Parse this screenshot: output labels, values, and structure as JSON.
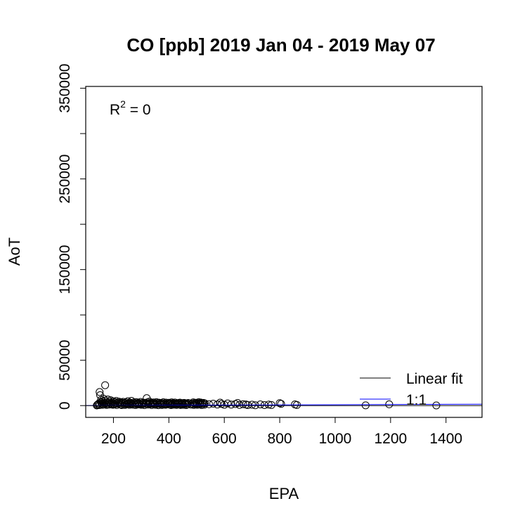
{
  "chart_data": {
    "type": "scatter",
    "title": "CO [ppb] 2019 Jan 04 - 2019 May 07",
    "xlabel": "EPA",
    "ylabel": "AoT",
    "xlim": [
      100,
      1530
    ],
    "ylim": [
      -13000,
      352000
    ],
    "x_ticks": [
      200,
      400,
      600,
      800,
      1000,
      1200,
      1400
    ],
    "x_tick_labels": [
      "200",
      "400",
      "600",
      "800",
      "1000",
      "1200",
      "1400"
    ],
    "y_ticks": [
      0,
      50000,
      100000,
      150000,
      200000,
      250000,
      300000,
      350000
    ],
    "y_tick_labels": [
      "0",
      "50000",
      "",
      "150000",
      "",
      "250000",
      "",
      "350000"
    ],
    "annotation": {
      "prefix": "R",
      "superscript": "2",
      "suffix": " = 0"
    },
    "legend": {
      "position": "bottom-right",
      "entries": [
        {
          "label": "Linear fit",
          "color": "#000000"
        },
        {
          "label": "1:1",
          "color": "#0000ff"
        }
      ]
    },
    "reference_lines": [
      {
        "name": "1:1",
        "intercept": 0,
        "slope": 1,
        "color": "#0000ff"
      },
      {
        "name": "Linear fit",
        "intercept": 0,
        "slope": 0,
        "color": "#000000"
      }
    ],
    "points": [
      [
        140,
        200
      ],
      [
        142,
        900
      ],
      [
        145,
        1500
      ],
      [
        148,
        2500
      ],
      [
        150,
        600
      ],
      [
        150,
        15000
      ],
      [
        152,
        11500
      ],
      [
        155,
        3800
      ],
      [
        155,
        6200
      ],
      [
        158,
        2100
      ],
      [
        160,
        900
      ],
      [
        160,
        4500
      ],
      [
        162,
        3000
      ],
      [
        165,
        7500
      ],
      [
        165,
        1200
      ],
      [
        168,
        2800
      ],
      [
        170,
        22500
      ],
      [
        170,
        5500
      ],
      [
        172,
        2600
      ],
      [
        175,
        3900
      ],
      [
        175,
        800
      ],
      [
        178,
        1600
      ],
      [
        180,
        6800
      ],
      [
        182,
        3100
      ],
      [
        185,
        1100
      ],
      [
        185,
        4200
      ],
      [
        188,
        2300
      ],
      [
        190,
        5900
      ],
      [
        192,
        1700
      ],
      [
        195,
        3300
      ],
      [
        198,
        900
      ],
      [
        200,
        4600
      ],
      [
        200,
        2000
      ],
      [
        203,
        1300
      ],
      [
        205,
        3700
      ],
      [
        208,
        2500
      ],
      [
        210,
        5100
      ],
      [
        212,
        700
      ],
      [
        215,
        3000
      ],
      [
        218,
        1900
      ],
      [
        220,
        4300
      ],
      [
        222,
        2700
      ],
      [
        225,
        1200
      ],
      [
        228,
        3500
      ],
      [
        230,
        600
      ],
      [
        232,
        2400
      ],
      [
        235,
        4100
      ],
      [
        238,
        1600
      ],
      [
        240,
        2900
      ],
      [
        242,
        800
      ],
      [
        245,
        3600
      ],
      [
        248,
        2100
      ],
      [
        250,
        1300
      ],
      [
        252,
        4800
      ],
      [
        255,
        2600
      ],
      [
        258,
        900
      ],
      [
        260,
        3200
      ],
      [
        262,
        1800
      ],
      [
        265,
        5200
      ],
      [
        268,
        2200
      ],
      [
        270,
        1000
      ],
      [
        272,
        3400
      ],
      [
        275,
        1500
      ],
      [
        278,
        2800
      ],
      [
        280,
        700
      ],
      [
        282,
        3900
      ],
      [
        285,
        2000
      ],
      [
        288,
        1200
      ],
      [
        290,
        3100
      ],
      [
        292,
        2500
      ],
      [
        295,
        1700
      ],
      [
        298,
        4000
      ],
      [
        300,
        900
      ],
      [
        302,
        2700
      ],
      [
        305,
        1400
      ],
      [
        308,
        3300
      ],
      [
        310,
        2200
      ],
      [
        312,
        600
      ],
      [
        315,
        2900
      ],
      [
        318,
        1800
      ],
      [
        320,
        8200
      ],
      [
        322,
        3600
      ],
      [
        325,
        1100
      ],
      [
        328,
        2400
      ],
      [
        330,
        4400
      ],
      [
        332,
        1600
      ],
      [
        335,
        3000
      ],
      [
        338,
        700
      ],
      [
        340,
        2600
      ],
      [
        342,
        1900
      ],
      [
        345,
        3500
      ],
      [
        348,
        1200
      ],
      [
        350,
        2300
      ],
      [
        352,
        900
      ],
      [
        355,
        3800
      ],
      [
        358,
        1700
      ],
      [
        360,
        2800
      ],
      [
        362,
        500
      ],
      [
        365,
        3200
      ],
      [
        368,
        2100
      ],
      [
        370,
        1400
      ],
      [
        372,
        2900
      ],
      [
        375,
        700
      ],
      [
        378,
        2400
      ],
      [
        380,
        3700
      ],
      [
        382,
        1300
      ],
      [
        385,
        2000
      ],
      [
        388,
        900
      ],
      [
        390,
        3300
      ],
      [
        395,
        1600
      ],
      [
        398,
        2500
      ],
      [
        400,
        3100
      ],
      [
        403,
        1100
      ],
      [
        405,
        2200
      ],
      [
        408,
        600
      ],
      [
        410,
        3600
      ],
      [
        412,
        1800
      ],
      [
        415,
        2700
      ],
      [
        418,
        1000
      ],
      [
        420,
        2300
      ],
      [
        422,
        3400
      ],
      [
        425,
        1500
      ],
      [
        428,
        800
      ],
      [
        430,
        2600
      ],
      [
        432,
        1900
      ],
      [
        435,
        2900
      ],
      [
        438,
        1200
      ],
      [
        440,
        3300
      ],
      [
        442,
        700
      ],
      [
        445,
        2100
      ],
      [
        448,
        1400
      ],
      [
        450,
        2700
      ],
      [
        452,
        900
      ],
      [
        455,
        3000
      ],
      [
        458,
        1700
      ],
      [
        460,
        2300
      ],
      [
        462,
        600
      ],
      [
        465,
        2500
      ],
      [
        468,
        1300
      ],
      [
        470,
        2900
      ],
      [
        480,
        1100
      ],
      [
        485,
        2200
      ],
      [
        488,
        3600
      ],
      [
        490,
        800
      ],
      [
        492,
        2700
      ],
      [
        495,
        1500
      ],
      [
        498,
        3100
      ],
      [
        500,
        2000
      ],
      [
        502,
        900
      ],
      [
        505,
        2600
      ],
      [
        508,
        3800
      ],
      [
        510,
        1200
      ],
      [
        512,
        2300
      ],
      [
        515,
        3400
      ],
      [
        518,
        700
      ],
      [
        520,
        2800
      ],
      [
        522,
        1600
      ],
      [
        525,
        3000
      ],
      [
        528,
        1000
      ],
      [
        530,
        2400
      ],
      [
        545,
        1500
      ],
      [
        560,
        2100
      ],
      [
        575,
        1200
      ],
      [
        585,
        3300
      ],
      [
        590,
        1800
      ],
      [
        600,
        900
      ],
      [
        612,
        2400
      ],
      [
        625,
        1100
      ],
      [
        640,
        1700
      ],
      [
        648,
        2900
      ],
      [
        655,
        800
      ],
      [
        668,
        1500
      ],
      [
        678,
        1200
      ],
      [
        685,
        600
      ],
      [
        700,
        1000
      ],
      [
        712,
        400
      ],
      [
        730,
        1300
      ],
      [
        745,
        600
      ],
      [
        760,
        1100
      ],
      [
        770,
        700
      ],
      [
        800,
        2700
      ],
      [
        805,
        1900
      ],
      [
        855,
        1300
      ],
      [
        862,
        700
      ],
      [
        1110,
        300
      ],
      [
        1195,
        1400
      ],
      [
        1365,
        200
      ]
    ]
  }
}
